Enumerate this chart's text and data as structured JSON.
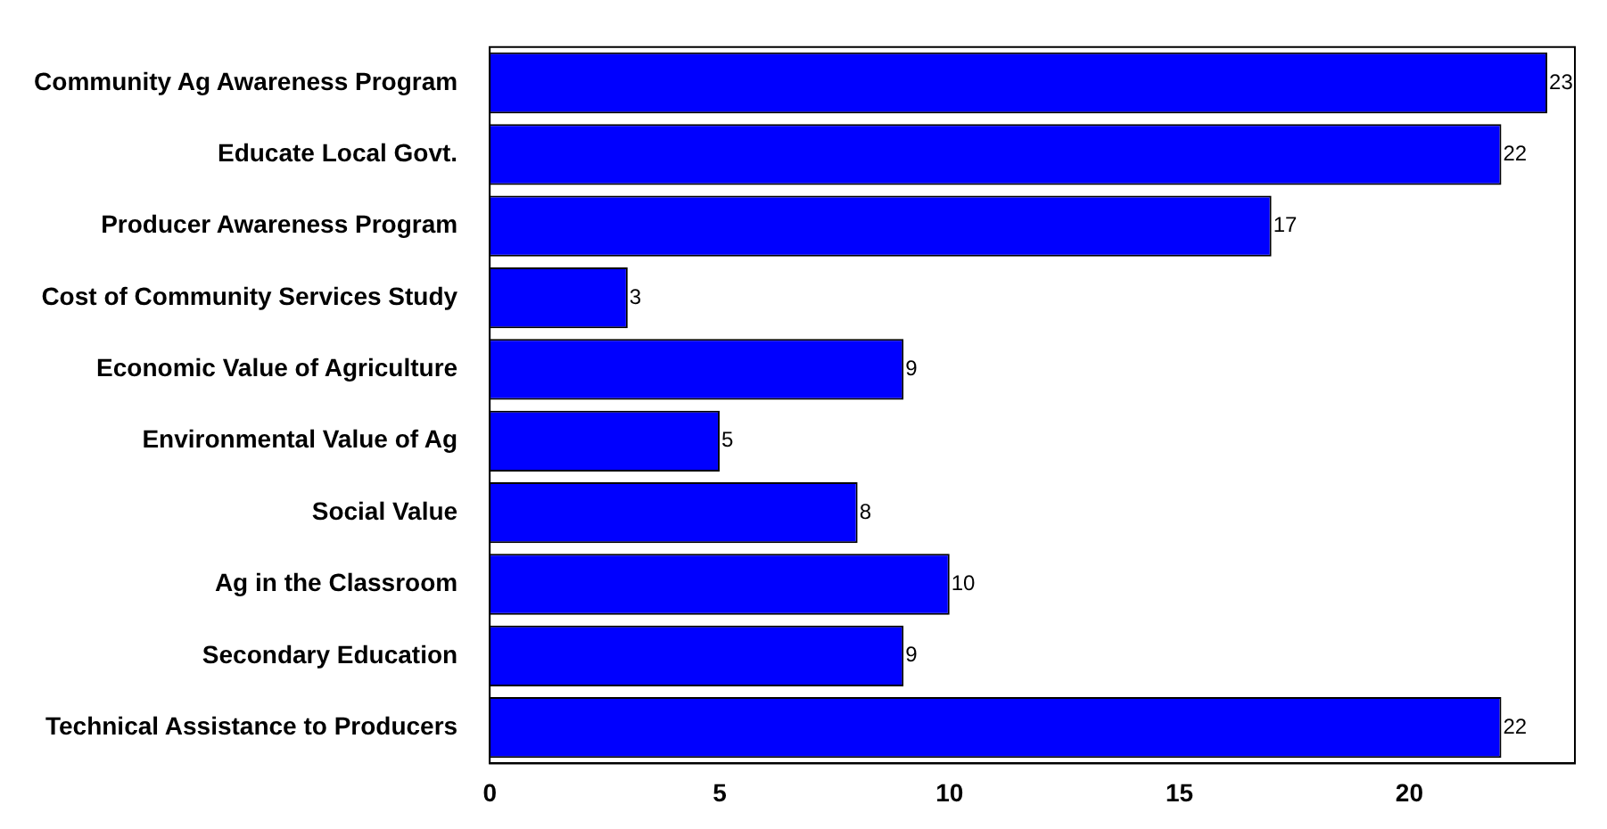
{
  "chart_data": {
    "type": "bar",
    "orientation": "horizontal",
    "categories": [
      "Community Ag Awareness Program",
      "Educate Local Govt.",
      "Producer Awareness Program",
      "Cost of Community Services Study",
      "Economic Value of Agriculture",
      "Environmental Value of Ag",
      "Social Value",
      "Ag in the Classroom",
      "Secondary Education",
      "Technical Assistance to Producers"
    ],
    "values": [
      23,
      22,
      17,
      3,
      9,
      5,
      8,
      10,
      9,
      22
    ],
    "color": "#0000ff",
    "xlim": [
      0,
      23.6
    ],
    "xticks": [
      0,
      5,
      10,
      15,
      20
    ],
    "data_labels": true,
    "grid": false,
    "legend": false
  }
}
